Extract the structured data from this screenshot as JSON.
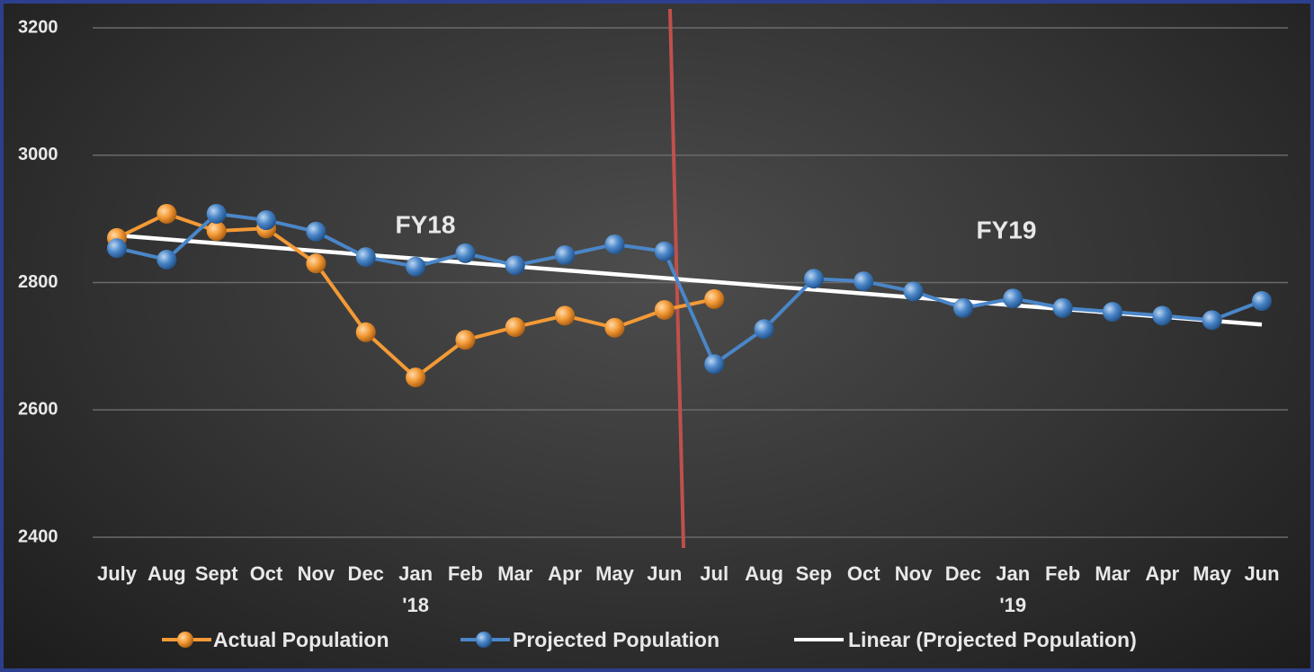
{
  "chart_data": {
    "type": "line",
    "categories": [
      "July",
      "Aug",
      "Sept",
      "Oct",
      "Nov",
      "Dec",
      "Jan\n'18",
      "Feb",
      "Mar",
      "Apr",
      "May",
      "Jun",
      "Jul",
      "Aug",
      "Sep",
      "Oct",
      "Nov",
      "Dec",
      "Jan\n'19",
      "Feb",
      "Mar",
      "Apr",
      "May",
      "Jun"
    ],
    "series": [
      {
        "name": "Actual Population",
        "color": "#f39a36",
        "marker": true,
        "values": [
          2870,
          2908,
          2881,
          2885,
          2830,
          2722,
          2651,
          2710,
          2730,
          2748,
          2729,
          2757,
          2774,
          null,
          null,
          null,
          null,
          null,
          null,
          null,
          null,
          null,
          null,
          null
        ]
      },
      {
        "name": "Projected Population",
        "color": "#4a86c8",
        "marker": true,
        "values": [
          2854,
          2836,
          2908,
          2898,
          2880,
          2840,
          2825,
          2846,
          2827,
          2843,
          2860,
          2849,
          2672,
          2727,
          2806,
          2802,
          2786,
          2760,
          2775,
          2760,
          2754,
          2748,
          2741,
          2771
        ]
      },
      {
        "name": "Linear (Projected Population)",
        "color": "#ffffff",
        "marker": false,
        "values": [
          2874,
          2867.9,
          2861.8,
          2855.7,
          2849.7,
          2843.6,
          2837.5,
          2831.4,
          2825.3,
          2819.2,
          2813.1,
          2807.0,
          2801.0,
          2794.9,
          2788.8,
          2782.7,
          2776.6,
          2770.5,
          2764.4,
          2758.3,
          2752.3,
          2746.2,
          2740.1,
          2734
        ]
      }
    ],
    "annotations": [
      "FY18",
      "FY19"
    ],
    "ylim": [
      2400,
      3200
    ],
    "yticks": [
      2400,
      2600,
      2800,
      3000,
      3200
    ],
    "grid": true,
    "legend": "bottom"
  }
}
